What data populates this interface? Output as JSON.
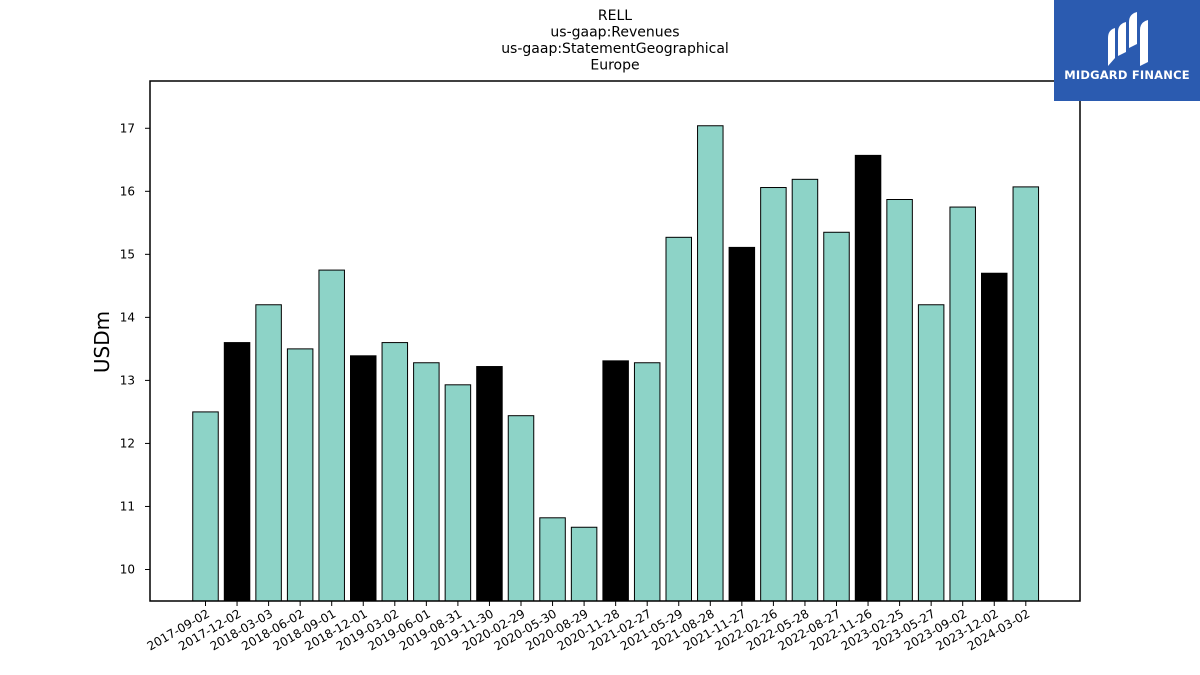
{
  "chart_data": {
    "type": "bar",
    "title_lines": [
      "RELL",
      "us-gaap:Revenues",
      "us-gaap:StatementGeographical",
      "Europe"
    ],
    "xlabel": "",
    "ylabel": "USDm",
    "ylim": [
      9.5,
      17.75
    ],
    "yticks": [
      10,
      11,
      12,
      13,
      14,
      15,
      16,
      17
    ],
    "categories": [
      "2017-09-02",
      "2017-12-02",
      "2018-03-03",
      "2018-06-02",
      "2018-09-01",
      "2018-12-01",
      "2019-03-02",
      "2019-06-01",
      "2019-08-31",
      "2019-11-30",
      "2020-02-29",
      "2020-05-30",
      "2020-08-29",
      "2020-11-28",
      "2021-02-27",
      "2021-05-29",
      "2021-08-28",
      "2021-11-27",
      "2022-02-26",
      "2022-05-28",
      "2022-08-27",
      "2022-11-26",
      "2023-02-25",
      "2023-05-27",
      "2023-09-02",
      "2023-12-02",
      "2024-03-02"
    ],
    "values": [
      12.5,
      13.6,
      14.2,
      13.5,
      14.75,
      13.39,
      13.6,
      13.28,
      12.93,
      13.22,
      12.44,
      10.82,
      10.67,
      13.31,
      13.28,
      15.27,
      17.04,
      15.11,
      16.06,
      16.19,
      15.35,
      16.57,
      15.87,
      14.2,
      15.75,
      14.7,
      16.07
    ],
    "highlight": [
      false,
      true,
      false,
      false,
      false,
      true,
      false,
      false,
      false,
      true,
      false,
      false,
      false,
      true,
      false,
      false,
      false,
      true,
      false,
      false,
      false,
      true,
      false,
      false,
      false,
      true,
      false
    ],
    "colors": {
      "normal": "#8dd3c7",
      "highlight": "#000000",
      "edge": "#000000"
    },
    "grid": false
  },
  "logo": {
    "text": "MIDGARD FINANCE",
    "background": "#2b5bb0"
  }
}
